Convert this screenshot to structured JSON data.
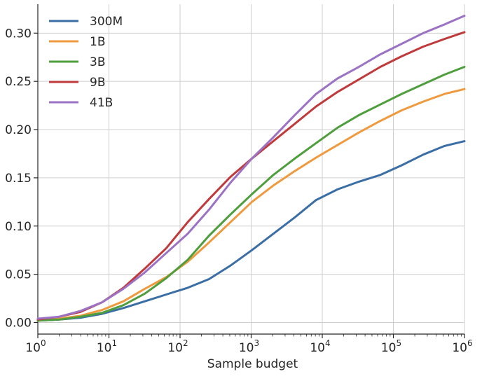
{
  "chart_data": {
    "type": "line",
    "xlabel": "Sample budget",
    "ylabel": "",
    "x_scale": "log",
    "xlim": [
      1,
      1000000
    ],
    "ylim": [
      -0.012,
      0.33
    ],
    "x_ticks": [
      {
        "value": 1,
        "base": "10",
        "exp": "0"
      },
      {
        "value": 10,
        "base": "10",
        "exp": "1"
      },
      {
        "value": 100,
        "base": "10",
        "exp": "2"
      },
      {
        "value": 1000,
        "base": "10",
        "exp": "3"
      },
      {
        "value": 10000,
        "base": "10",
        "exp": "4"
      },
      {
        "value": 100000,
        "base": "10",
        "exp": "5"
      },
      {
        "value": 1000000,
        "base": "10",
        "exp": "6"
      }
    ],
    "y_ticks": [
      {
        "value": 0.0,
        "label": "0.00"
      },
      {
        "value": 0.05,
        "label": "0.05"
      },
      {
        "value": 0.1,
        "label": "0.10"
      },
      {
        "value": 0.15,
        "label": "0.15"
      },
      {
        "value": 0.2,
        "label": "0.20"
      },
      {
        "value": 0.25,
        "label": "0.25"
      },
      {
        "value": 0.3,
        "label": "0.30"
      }
    ],
    "grid": true,
    "legend_position": "top-left",
    "x": [
      1,
      2,
      4,
      8,
      16,
      32,
      64,
      128,
      256,
      512,
      1024,
      2048,
      4096,
      8192,
      16384,
      32768,
      65536,
      131072,
      262144,
      524288,
      1000000
    ],
    "series": [
      {
        "name": "300M",
        "color": "#3a6ea5",
        "values": [
          0.002,
          0.003,
          0.005,
          0.009,
          0.015,
          0.022,
          0.029,
          0.036,
          0.045,
          0.059,
          0.075,
          0.092,
          0.109,
          0.127,
          0.138,
          0.146,
          0.153,
          0.163,
          0.174,
          0.183,
          0.188
        ]
      },
      {
        "name": "1B",
        "color": "#ef9a3f",
        "values": [
          0.002,
          0.004,
          0.007,
          0.013,
          0.022,
          0.035,
          0.047,
          0.063,
          0.083,
          0.104,
          0.125,
          0.142,
          0.157,
          0.171,
          0.184,
          0.197,
          0.209,
          0.22,
          0.229,
          0.237,
          0.242
        ]
      },
      {
        "name": "3B",
        "color": "#4f9e3d",
        "values": [
          0.002,
          0.003,
          0.006,
          0.01,
          0.018,
          0.03,
          0.046,
          0.065,
          0.09,
          0.112,
          0.133,
          0.153,
          0.17,
          0.186,
          0.202,
          0.215,
          0.226,
          0.237,
          0.247,
          0.257,
          0.265
        ]
      },
      {
        "name": "9B",
        "color": "#c0393b",
        "values": [
          0.003,
          0.006,
          0.011,
          0.021,
          0.036,
          0.056,
          0.077,
          0.104,
          0.128,
          0.151,
          0.17,
          0.188,
          0.206,
          0.224,
          0.239,
          0.252,
          0.265,
          0.276,
          0.286,
          0.294,
          0.301
        ]
      },
      {
        "name": "41B",
        "color": "#9b72c4",
        "values": [
          0.004,
          0.006,
          0.012,
          0.021,
          0.035,
          0.052,
          0.072,
          0.092,
          0.117,
          0.145,
          0.17,
          0.192,
          0.215,
          0.237,
          0.253,
          0.265,
          0.278,
          0.289,
          0.3,
          0.309,
          0.318
        ]
      }
    ]
  }
}
